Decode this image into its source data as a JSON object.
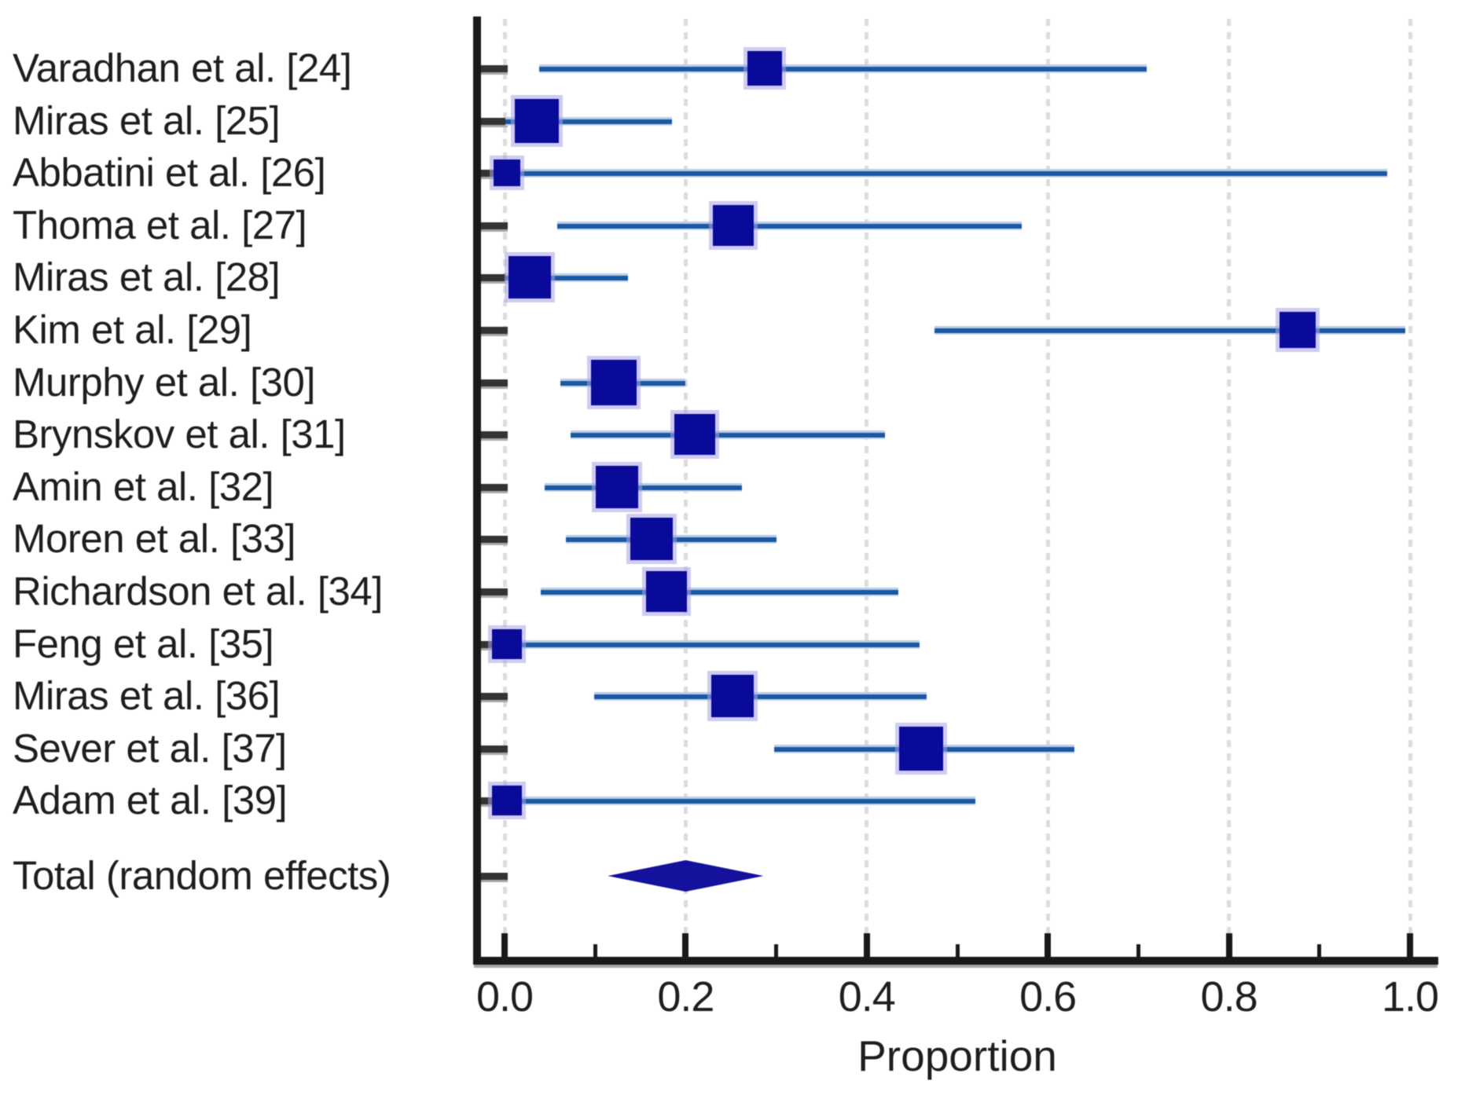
{
  "figure": {
    "background": "#ffffff"
  },
  "chart_data": {
    "type": "scatter",
    "subtype": "forest_plot_meta_analysis",
    "title": "",
    "xlabel": "Proportion",
    "xlim": [
      0.0,
      1.0
    ],
    "grid": "vertical dashed gridlines at major ticks",
    "legend": "none",
    "x_major_ticks": [
      {
        "value": 0.0,
        "label": "0.0"
      },
      {
        "value": 0.2,
        "label": "0.2"
      },
      {
        "value": 0.4,
        "label": "0.4"
      },
      {
        "value": 0.6,
        "label": "0.6"
      },
      {
        "value": 0.8,
        "label": "0.8"
      },
      {
        "value": 1.0,
        "label": "1.0"
      }
    ],
    "x_minor_ticks": [
      0.1,
      0.3,
      0.5,
      0.7,
      0.9
    ],
    "studies": [
      {
        "label": "Varadhan et al. [24]",
        "proportion": 0.287,
        "ci_low": 0.038,
        "ci_high": 0.709,
        "marker_size": 44
      },
      {
        "label": "Miras et al. [25]",
        "proportion": 0.036,
        "ci_low": 0.001,
        "ci_high": 0.185,
        "marker_size": 56
      },
      {
        "label": "Abbatini et al. [26]",
        "proportion": 0.003,
        "ci_low": 0.001,
        "ci_high": 0.975,
        "marker_size": 34
      },
      {
        "label": "Thoma et al. [27]",
        "proportion": 0.253,
        "ci_low": 0.058,
        "ci_high": 0.571,
        "marker_size": 52
      },
      {
        "label": "Miras et al. [28]",
        "proportion": 0.028,
        "ci_low": 0.001,
        "ci_high": 0.136,
        "marker_size": 54
      },
      {
        "label": "Kim et al. [29]",
        "proportion": 0.876,
        "ci_low": 0.475,
        "ci_high": 0.995,
        "marker_size": 46
      },
      {
        "label": "Murphy et al. [30]",
        "proportion": 0.121,
        "ci_low": 0.062,
        "ci_high": 0.2,
        "marker_size": 58
      },
      {
        "label": "Brynskov et al. [31]",
        "proportion": 0.21,
        "ci_low": 0.073,
        "ci_high": 0.42,
        "marker_size": 52
      },
      {
        "label": "Amin et al. [32]",
        "proportion": 0.124,
        "ci_low": 0.044,
        "ci_high": 0.262,
        "marker_size": 54
      },
      {
        "label": "Moren et al. [33]",
        "proportion": 0.162,
        "ci_low": 0.068,
        "ci_high": 0.3,
        "marker_size": 54
      },
      {
        "label": "Richardson et al. [34]",
        "proportion": 0.179,
        "ci_low": 0.04,
        "ci_high": 0.435,
        "marker_size": 52
      },
      {
        "label": "Feng et al. [35]",
        "proportion": 0.003,
        "ci_low": 0.001,
        "ci_high": 0.458,
        "marker_size": 38
      },
      {
        "label": "Miras et al. [36]",
        "proportion": 0.252,
        "ci_low": 0.099,
        "ci_high": 0.466,
        "marker_size": 54
      },
      {
        "label": "Sever et al. [37]",
        "proportion": 0.46,
        "ci_low": 0.298,
        "ci_high": 0.629,
        "marker_size": 56
      },
      {
        "label": "Adam et al. [39]",
        "proportion": 0.003,
        "ci_low": 0.001,
        "ci_high": 0.52,
        "marker_size": 38
      }
    ],
    "total": {
      "label": "Total (random effects)",
      "proportion": 0.2,
      "ci_low": 0.114,
      "ci_high": 0.286
    },
    "style": {
      "marker_color": "#0a0a9a",
      "marker_halo": "rgba(167,162,230,0.55)",
      "ci_line_color": "#1b58a4",
      "ci_line_light_top": "#b9cde5",
      "ci_line_light_bottom": "#c6d8ea",
      "diamond_color": "#14119c",
      "grid_color": "#dcdcdc",
      "axis_color": "#191919",
      "axis_shadow_color": "#a8a8a8",
      "tick_stub_color": "#333333",
      "text_color": "#201e1c"
    }
  }
}
